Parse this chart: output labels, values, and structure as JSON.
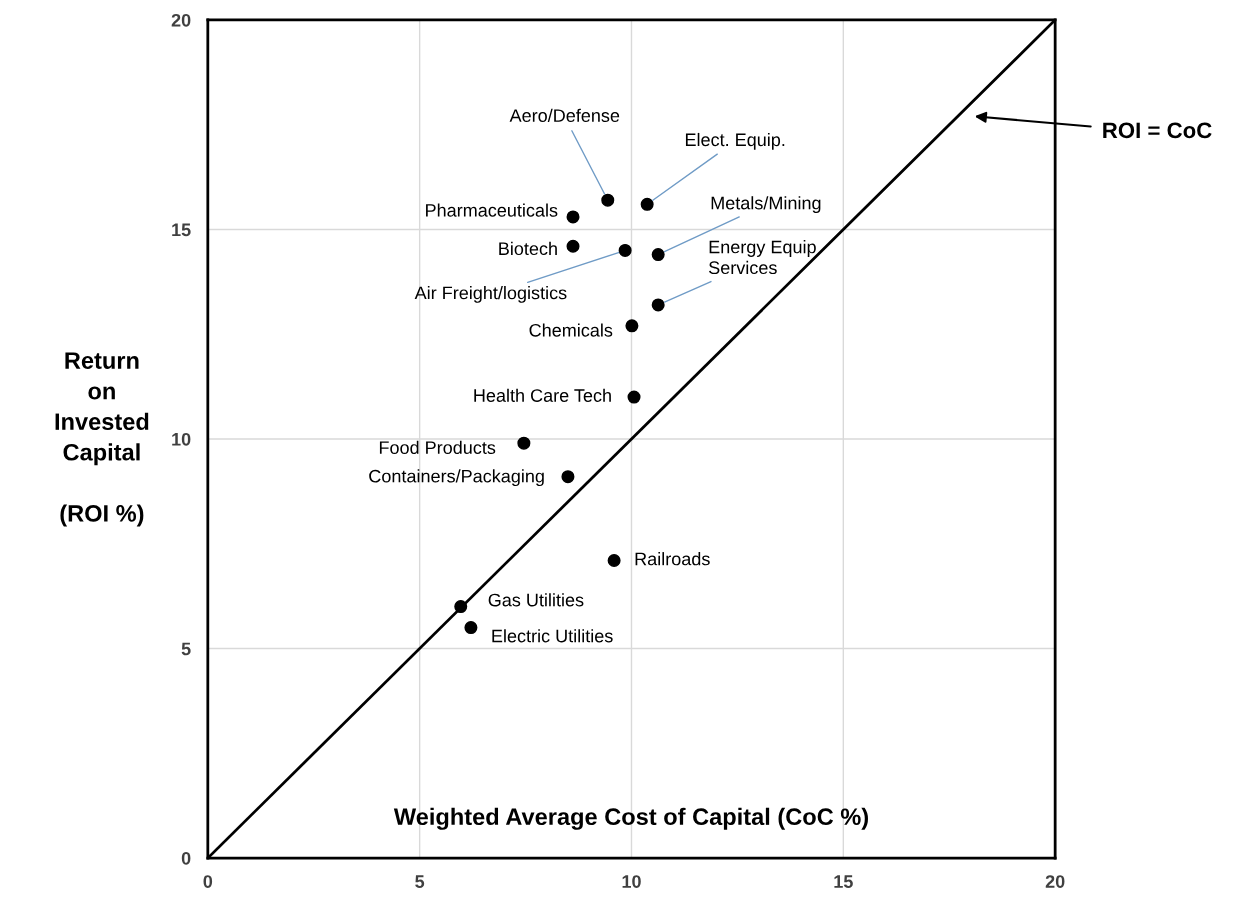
{
  "chart_data": {
    "type": "scatter",
    "xlabel": "Weighted Average Cost of Capital (CoC %)",
    "ylabel": "Return\non\nInvested\nCapital\n\n(ROI %)",
    "series": [
      {
        "color": "#000000",
        "marker": "circle",
        "x": [
          9.44,
          10.37,
          8.62,
          8.62,
          9.85,
          10.63,
          10.63,
          10.01,
          10.06,
          7.46,
          8.5,
          9.59,
          5.97,
          6.21
        ],
        "values": [
          15.7,
          15.6,
          15.3,
          14.6,
          14.5,
          14.4,
          13.2,
          12.7,
          11.0,
          9.9,
          9.1,
          7.1,
          6.0,
          5.5
        ]
      },
      {
        "type": "line",
        "color": "#000000",
        "x": [
          0,
          20
        ],
        "values": [
          0,
          20
        ]
      }
    ],
    "annotations": [
      {
        "text": "Aero/Defense",
        "x": 9.44,
        "y": 15.7
      },
      {
        "text": "Elect. Equip.",
        "x": 10.37,
        "y": 15.6
      },
      {
        "text": "Pharmaceuticals",
        "x": 8.62,
        "y": 15.3
      },
      {
        "text": "Biotech",
        "x": 8.62,
        "y": 14.6
      },
      {
        "text": "Air Freight/logistics",
        "x": 9.85,
        "y": 14.5
      },
      {
        "text": "Metals/Mining",
        "x": 10.63,
        "y": 14.4
      },
      {
        "text": "Energy Equip\nServices",
        "x": 10.63,
        "y": 13.2
      },
      {
        "text": "Chemicals",
        "x": 10.01,
        "y": 12.7
      },
      {
        "text": "Health Care Tech",
        "x": 10.06,
        "y": 11.0
      },
      {
        "text": "Food Products",
        "x": 7.46,
        "y": 9.9
      },
      {
        "text": "Containers/Packaging",
        "x": 8.5,
        "y": 9.1
      },
      {
        "text": "Railroads",
        "x": 9.59,
        "y": 7.1
      },
      {
        "text": "Gas Utilities",
        "x": 5.97,
        "y": 6.0
      },
      {
        "text": "Electric Utilities",
        "x": 6.21,
        "y": 5.5
      },
      "ROI = CoC"
    ],
    "xlim": [
      0,
      20
    ],
    "ylim": [
      0,
      20
    ],
    "xticks": [
      0,
      5,
      10,
      15,
      20
    ],
    "yticks": [
      0,
      5,
      10,
      15,
      20
    ],
    "grid": true
  }
}
